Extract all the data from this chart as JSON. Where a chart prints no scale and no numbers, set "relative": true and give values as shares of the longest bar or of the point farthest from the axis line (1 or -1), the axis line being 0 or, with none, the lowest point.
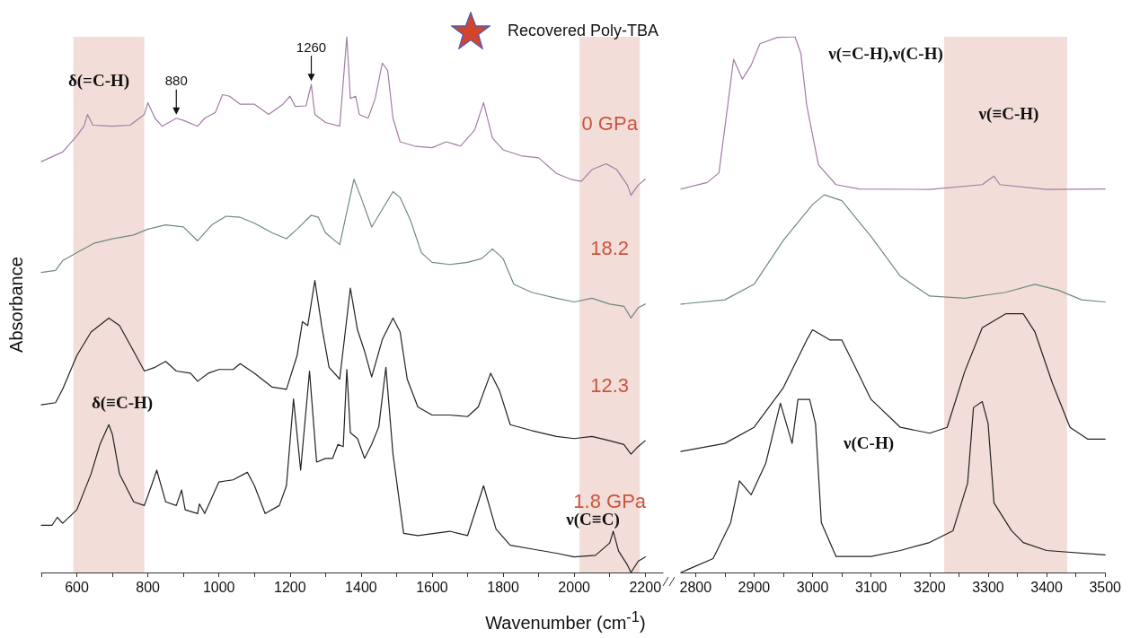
{
  "chart_data": [
    {
      "type": "line",
      "relative": true,
      "title": "Recovered Poly-TBA",
      "xlabel": "Wavenumber (cm$^{-1}$)",
      "ylabel": "Absorbance",
      "xlim": [
        500,
        2250
      ],
      "xticks": [
        {
          "value": 500,
          "label": null
        },
        600,
        {
          "value": 700,
          "label": null
        },
        800,
        {
          "value": 900,
          "label": null
        },
        1000,
        {
          "value": 1100,
          "label": null
        },
        1200,
        {
          "value": 1300,
          "label": null
        },
        1400,
        {
          "value": 1500,
          "label": null
        },
        1600,
        {
          "value": 1700,
          "label": null
        },
        1800,
        {
          "value": 1900,
          "label": null
        },
        2000,
        {
          "value": 2100,
          "label": null
        },
        2200
      ],
      "bands": [
        {
          "axis": "x",
          "from": 590,
          "to": 790,
          "color": "#f3ddd8"
        },
        {
          "axis": "x",
          "from": 2015,
          "to": 2185,
          "color": "#f3ddd8"
        }
      ],
      "annotations": [
        "δ(=C-H)",
        {
          "text": "880",
          "x": 880,
          "y": 0.848
        },
        {
          "text": "1260",
          "x": 1260,
          "y": 0.911
        },
        "δ(≡C-H)",
        "ν(C≡C)"
      ],
      "series": [
        {
          "name": "0 GPa",
          "color": "#a27ca6",
          "x": [
            500,
            560,
            600,
            620,
            630,
            645,
            700,
            750,
            790,
            800,
            820,
            840,
            880,
            900,
            940,
            960,
            990,
            1010,
            1030,
            1060,
            1100,
            1140,
            1180,
            1200,
            1215,
            1245,
            1260,
            1270,
            1300,
            1340,
            1360,
            1370,
            1385,
            1395,
            1420,
            1440,
            1460,
            1475,
            1490,
            1510,
            1550,
            1600,
            1640,
            1680,
            1720,
            1745,
            1770,
            1800,
            1850,
            1900,
            1950,
            1990,
            2020,
            2050,
            2090,
            2120,
            2150,
            2160,
            2180,
            2200
          ],
          "values": [
            0.767,
            0.785,
            0.815,
            0.833,
            0.855,
            0.835,
            0.833,
            0.835,
            0.855,
            0.877,
            0.848,
            0.833,
            0.848,
            0.844,
            0.833,
            0.848,
            0.859,
            0.892,
            0.889,
            0.874,
            0.874,
            0.855,
            0.874,
            0.889,
            0.87,
            0.871,
            0.911,
            0.855,
            0.84,
            0.833,
            1,
            0.885,
            0.889,
            0.855,
            0.848,
            0.885,
            0.951,
            0.937,
            0.848,
            0.804,
            0.796,
            0.793,
            0.804,
            0.796,
            0.826,
            0.877,
            0.811,
            0.789,
            0.778,
            0.774,
            0.745,
            0.734,
            0.73,
            0.752,
            0.763,
            0.752,
            0.723,
            0.704,
            0.723,
            0.734
          ]
        },
        {
          "name": "18.2",
          "color": "#6f8a80",
          "x": [
            500,
            540,
            560,
            600,
            650,
            700,
            760,
            800,
            850,
            900,
            940,
            980,
            1020,
            1060,
            1100,
            1150,
            1190,
            1220,
            1260,
            1280,
            1300,
            1340,
            1380,
            1400,
            1430,
            1460,
            1490,
            1510,
            1540,
            1570,
            1600,
            1650,
            1700,
            1740,
            1770,
            1800,
            1830,
            1880,
            1950,
            2000,
            2050,
            2100,
            2140,
            2160,
            2180,
            2200
          ],
          "values": [
            0.56,
            0.564,
            0.582,
            0.597,
            0.615,
            0.623,
            0.63,
            0.641,
            0.649,
            0.645,
            0.619,
            0.649,
            0.665,
            0.663,
            0.652,
            0.634,
            0.623,
            0.641,
            0.667,
            0.663,
            0.634,
            0.612,
            0.734,
            0.7,
            0.645,
            0.678,
            0.711,
            0.7,
            0.656,
            0.597,
            0.579,
            0.575,
            0.579,
            0.586,
            0.604,
            0.586,
            0.538,
            0.523,
            0.512,
            0.505,
            0.512,
            0.501,
            0.497,
            0.475,
            0.494,
            0.501
          ]
        },
        {
          "name": "12.3",
          "color": "#222222",
          "x": [
            500,
            540,
            560,
            600,
            640,
            690,
            720,
            760,
            790,
            820,
            850,
            880,
            920,
            940,
            970,
            1000,
            1040,
            1060,
            1100,
            1150,
            1190,
            1220,
            1235,
            1250,
            1270,
            1290,
            1310,
            1340,
            1370,
            1390,
            1410,
            1430,
            1460,
            1490,
            1510,
            1530,
            1560,
            1600,
            1650,
            1700,
            1730,
            1765,
            1790,
            1820,
            1880,
            1950,
            2000,
            2050,
            2100,
            2140,
            2160,
            2180,
            2200
          ],
          "values": [
            0.313,
            0.317,
            0.342,
            0.405,
            0.449,
            0.475,
            0.461,
            0.413,
            0.376,
            0.383,
            0.394,
            0.376,
            0.372,
            0.357,
            0.372,
            0.379,
            0.379,
            0.39,
            0.372,
            0.346,
            0.342,
            0.405,
            0.468,
            0.461,
            0.545,
            0.457,
            0.383,
            0.361,
            0.531,
            0.453,
            0.413,
            0.365,
            0.435,
            0.475,
            0.449,
            0.361,
            0.309,
            0.294,
            0.294,
            0.291,
            0.309,
            0.372,
            0.339,
            0.276,
            0.265,
            0.254,
            0.25,
            0.254,
            0.246,
            0.239,
            0.221,
            0.235,
            0.246
          ]
        },
        {
          "name": "1.8 GPa",
          "color": "#222222",
          "x": [
            500,
            530,
            545,
            560,
            600,
            640,
            665,
            690,
            700,
            720,
            760,
            790,
            810,
            825,
            850,
            880,
            895,
            905,
            940,
            945,
            960,
            1000,
            1040,
            1080,
            1100,
            1130,
            1170,
            1190,
            1210,
            1230,
            1255,
            1275,
            1300,
            1320,
            1335,
            1350,
            1360,
            1370,
            1390,
            1410,
            1430,
            1450,
            1470,
            1490,
            1520,
            1560,
            1650,
            1700,
            1745,
            1780,
            1820,
            1880,
            1950,
            2000,
            2060,
            2100,
            2110,
            2125,
            2150,
            2160,
            2180,
            2200
          ],
          "values": [
            0.088,
            0.088,
            0.103,
            0.092,
            0.117,
            0.184,
            0.239,
            0.276,
            0.258,
            0.184,
            0.132,
            0.125,
            0.162,
            0.191,
            0.132,
            0.125,
            0.154,
            0.117,
            0.11,
            0.128,
            0.11,
            0.169,
            0.173,
            0.187,
            0.162,
            0.11,
            0.125,
            0.162,
            0.324,
            0.191,
            0.376,
            0.206,
            0.213,
            0.213,
            0.239,
            0.235,
            0.379,
            0.261,
            0.25,
            0.213,
            0.239,
            0.272,
            0.383,
            0.221,
            0.073,
            0.069,
            0.077,
            0.069,
            0.162,
            0.081,
            0.051,
            0.044,
            0.036,
            0.029,
            0.032,
            0.055,
            0.077,
            0.04,
            0.014,
            0,
            0.021,
            0.029
          ]
        }
      ]
    },
    {
      "type": "line",
      "relative": true,
      "xlim": [
        2775,
        3500
      ],
      "xticks": [
        2800,
        {
          "value": 2850,
          "label": null
        },
        2900,
        {
          "value": 2950,
          "label": null
        },
        3000,
        {
          "value": 3050,
          "label": null
        },
        3100,
        {
          "value": 3150,
          "label": null
        },
        3200,
        {
          "value": 3250,
          "label": null
        },
        3300,
        {
          "value": 3350,
          "label": null
        },
        3400,
        {
          "value": 3450,
          "label": null
        },
        3500
      ],
      "bands": [
        {
          "axis": "x",
          "from": 3225,
          "to": 3435,
          "color": "#f3ddd8"
        }
      ],
      "annotations": [
        "ν(=C-H),ν(C-H)",
        "ν(≡C-H)",
        "ν(C-H)"
      ],
      "series": [
        {
          "color": "#a27ca6",
          "x": [
            2775,
            2820,
            2840,
            2855,
            2865,
            2880,
            2895,
            2910,
            2940,
            2970,
            2980,
            2990,
            3010,
            3040,
            3080,
            3200,
            3290,
            3310,
            3320,
            3400,
            3500
          ],
          "values": [
            0.716,
            0.728,
            0.746,
            0.872,
            0.958,
            0.921,
            0.947,
            0.987,
            0.999,
            1,
            0.969,
            0.872,
            0.761,
            0.724,
            0.716,
            0.715,
            0.724,
            0.74,
            0.724,
            0.715,
            0.716
          ]
        },
        {
          "color": "#6f8a80",
          "x": [
            2775,
            2850,
            2900,
            2950,
            3000,
            3020,
            3050,
            3100,
            3150,
            3200,
            3260,
            3330,
            3380,
            3420,
            3460,
            3500
          ],
          "values": [
            0.501,
            0.509,
            0.538,
            0.62,
            0.687,
            0.705,
            0.694,
            0.627,
            0.553,
            0.516,
            0.512,
            0.523,
            0.538,
            0.527,
            0.509,
            0.505
          ]
        },
        {
          "color": "#222222",
          "x": [
            2775,
            2850,
            2900,
            2950,
            2990,
            3000,
            3030,
            3050,
            3070,
            3100,
            3150,
            3200,
            3230,
            3260,
            3290,
            3330,
            3360,
            3380,
            3410,
            3440,
            3470,
            3500
          ],
          "values": [
            0.226,
            0.241,
            0.271,
            0.345,
            0.434,
            0.453,
            0.434,
            0.434,
            0.39,
            0.323,
            0.271,
            0.26,
            0.271,
            0.375,
            0.457,
            0.483,
            0.483,
            0.449,
            0.353,
            0.271,
            0.249,
            0.249
          ]
        },
        {
          "color": "#222222",
          "x": [
            2775,
            2830,
            2860,
            2875,
            2895,
            2920,
            2945,
            2965,
            2975,
            2995,
            3005,
            3015,
            3040,
            3100,
            3150,
            3200,
            3240,
            3265,
            3275,
            3290,
            3300,
            3310,
            3340,
            3360,
            3400,
            3500
          ],
          "values": [
            0,
            0.026,
            0.093,
            0.171,
            0.145,
            0.204,
            0.316,
            0.241,
            0.323,
            0.323,
            0.278,
            0.093,
            0.03,
            0.03,
            0.041,
            0.056,
            0.078,
            0.167,
            0.308,
            0.319,
            0.278,
            0.13,
            0.078,
            0.056,
            0.041,
            0.033
          ]
        }
      ]
    }
  ]
}
